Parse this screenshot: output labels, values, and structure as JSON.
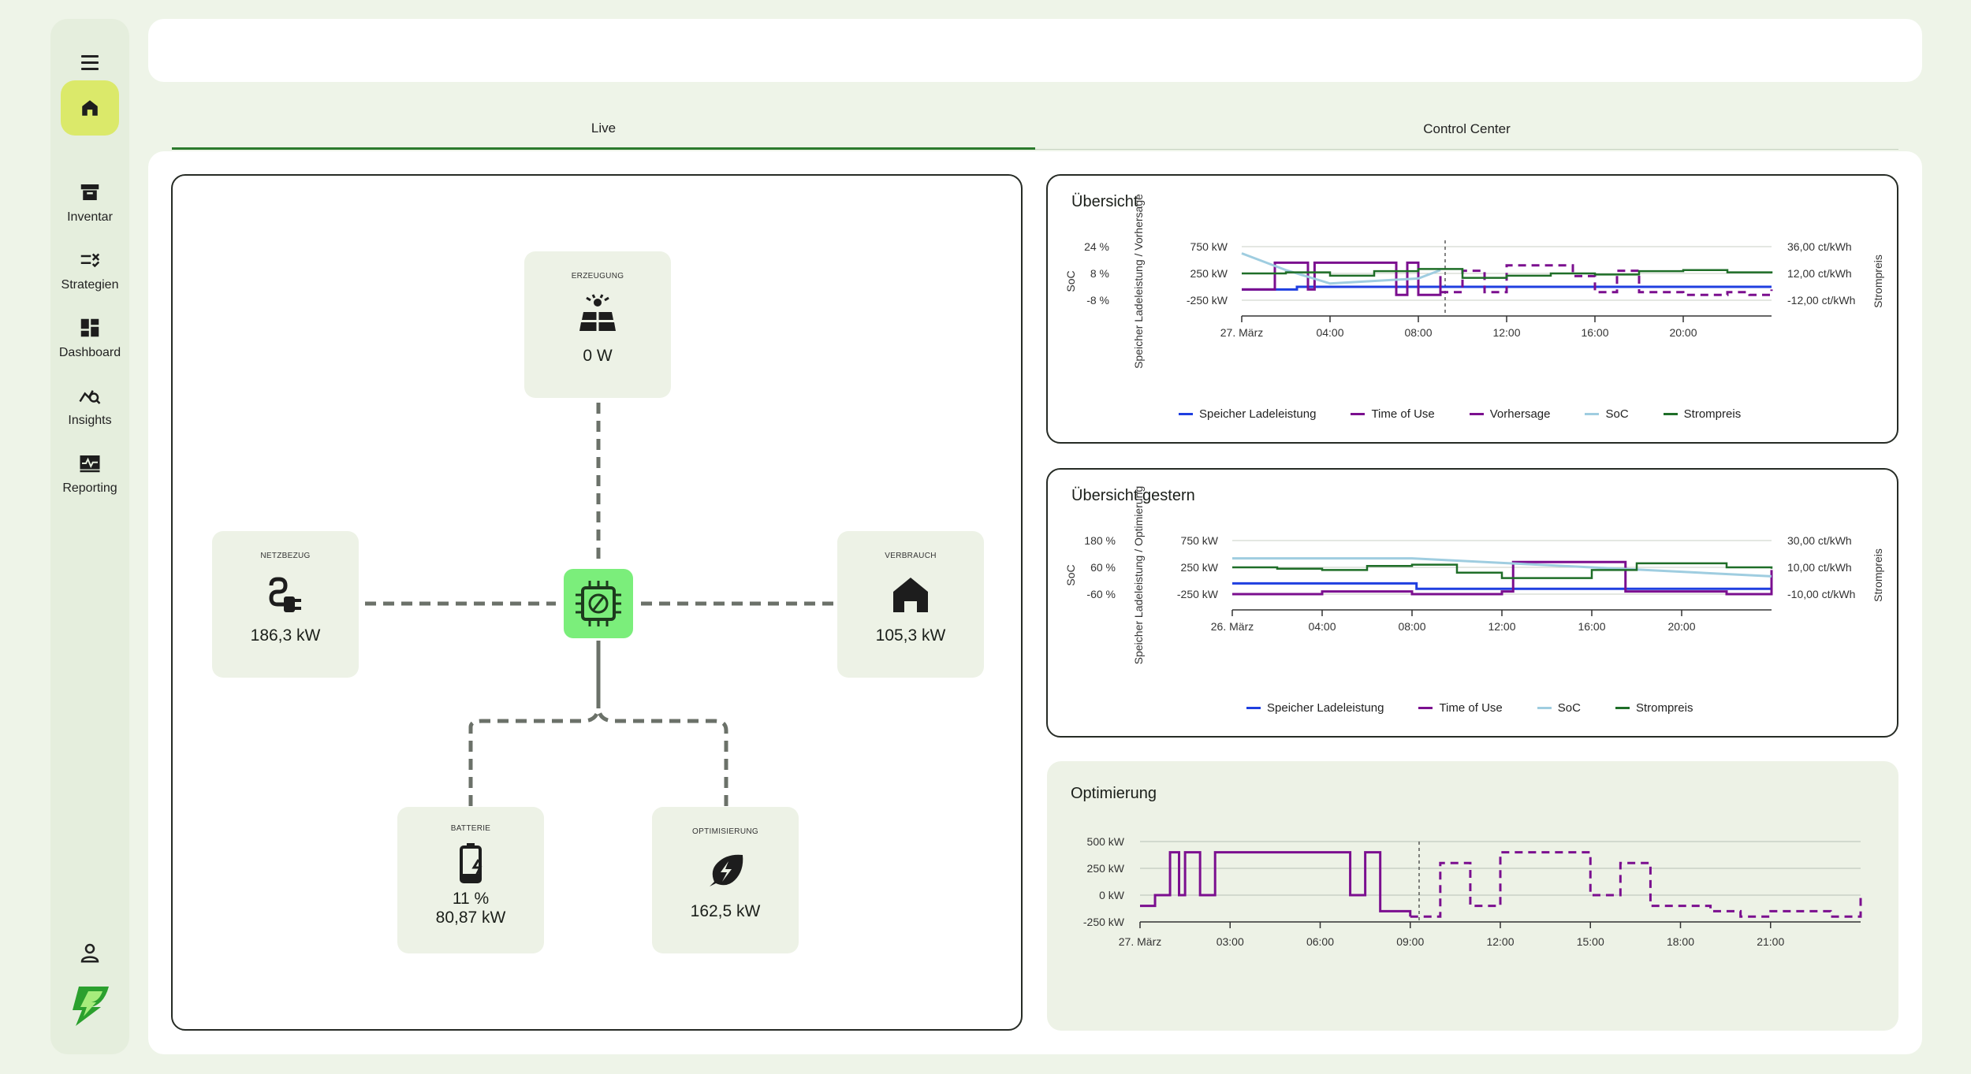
{
  "sidebar": {
    "items": [
      {
        "label": "Inventar",
        "icon": "archive-icon"
      },
      {
        "label": "Strategien",
        "icon": "strategy-icon"
      },
      {
        "label": "Dashboard",
        "icon": "dashboard-icon"
      },
      {
        "label": "Insights",
        "icon": "insights-icon"
      },
      {
        "label": "Reporting",
        "icon": "reporting-icon"
      }
    ]
  },
  "tabs": [
    {
      "label": "Live",
      "active": true
    },
    {
      "label": "Control Center",
      "active": false
    }
  ],
  "flow": {
    "erzeugung": {
      "title": "ERZEUGUNG",
      "value": "0 W"
    },
    "netzbezug": {
      "title": "NETZBEZUG",
      "value": "186,3 kW"
    },
    "verbrauch": {
      "title": "VERBRAUCH",
      "value": "105,3 kW"
    },
    "batterie": {
      "title": "BATTERIE",
      "soc": "11 %",
      "value": "80,87 kW"
    },
    "optimisierung": {
      "title": "OPTIMISIERUNG",
      "value": "162,5 kW"
    }
  },
  "colors": {
    "accent": "#dbe96a",
    "hub": "#7bee7b",
    "speicher": "#1f3fe0",
    "time_of_use": "#7b0f8f",
    "soc": "#9fcde0",
    "strompreis": "#1f6e28"
  },
  "chart_data": [
    {
      "type": "line",
      "title": "Übersicht",
      "y_left_soc_label": "SoC",
      "y_left_soc_ticks": [
        "24 %",
        "8 %",
        "-8 %"
      ],
      "y_left_power_label": "Speicher Ladeleistung / Vorhersage",
      "y_left_power_ticks": [
        "750 kW",
        "250 kW",
        "-250 kW"
      ],
      "y_right_label": "Strompreis",
      "y_right_ticks": [
        "36,00 ct/kWh",
        "12,00 ct/kWh",
        "-12,00 ct/kWh"
      ],
      "x_ticks": [
        "27. März",
        "04:00",
        "08:00",
        "12:00",
        "16:00",
        "20:00"
      ],
      "legend": [
        "Speicher Ladeleistung",
        "Time of Use",
        "Vorhersage",
        "SoC",
        "Strompreis"
      ],
      "series": [
        {
          "name": "Speicher Ladeleistung",
          "x": [
            0,
            2,
            2.5,
            12,
            24
          ],
          "y": [
            -50,
            -50,
            0,
            0,
            0
          ]
        },
        {
          "name": "Time of Use",
          "x": [
            0,
            1,
            1.5,
            2.5,
            3,
            3.3,
            3.6,
            6.5,
            7,
            7.5,
            8,
            9
          ],
          "y": [
            -50,
            -50,
            450,
            450,
            -50,
            450,
            450,
            450,
            -150,
            450,
            -150,
            200
          ]
        },
        {
          "name": "Vorhersage",
          "x": [
            9,
            10,
            11,
            12,
            13,
            14,
            15,
            16,
            17,
            18,
            19,
            20,
            21,
            22,
            23,
            24
          ],
          "y": [
            -100,
            300,
            -100,
            400,
            400,
            400,
            200,
            -100,
            300,
            -100,
            -100,
            -150,
            -150,
            -100,
            -150,
            -50
          ]
        },
        {
          "name": "SoC",
          "x": [
            0,
            2,
            4,
            8,
            9
          ],
          "y": [
            20,
            10,
            2,
            5,
            10
          ]
        },
        {
          "name": "Strompreis",
          "x": [
            0,
            2,
            4,
            6,
            8,
            10,
            12,
            14,
            16,
            18,
            20,
            22,
            24
          ],
          "y": [
            12,
            13,
            10,
            14,
            16,
            8,
            10,
            12,
            11,
            14,
            15,
            13,
            12
          ]
        }
      ]
    },
    {
      "type": "line",
      "title": "Übersicht gestern",
      "y_left_soc_label": "SoC",
      "y_left_soc_ticks": [
        "180 %",
        "60 %",
        "-60 %"
      ],
      "y_left_power_label": "Speicher Ladeleistung / Optimierung",
      "y_left_power_ticks": [
        "750 kW",
        "250 kW",
        "-250 kW"
      ],
      "y_right_label": "Strompreis",
      "y_right_ticks": [
        "30,00 ct/kWh",
        "10,00 ct/kWh",
        "-10,00 ct/kWh"
      ],
      "x_ticks": [
        "26. März",
        "04:00",
        "08:00",
        "12:00",
        "16:00",
        "20:00"
      ],
      "legend": [
        "Speicher Ladeleistung",
        "Time of Use",
        "SoC",
        "Strompreis"
      ],
      "series": [
        {
          "name": "Speicher Ladeleistung",
          "x": [
            0,
            8,
            8.2,
            24
          ],
          "y": [
            -50,
            -50,
            -150,
            -150
          ]
        },
        {
          "name": "Time of Use",
          "x": [
            0,
            4,
            8,
            12,
            12.5,
            13,
            17,
            17.5,
            22,
            24
          ],
          "y": [
            -250,
            -200,
            -250,
            -200,
            350,
            350,
            350,
            -200,
            -250,
            200
          ]
        },
        {
          "name": "SoC",
          "x": [
            0,
            8,
            12,
            16,
            20,
            24
          ],
          "y": [
            100,
            100,
            80,
            60,
            40,
            20
          ]
        },
        {
          "name": "Strompreis",
          "x": [
            0,
            2,
            4,
            6,
            8,
            10,
            12,
            14,
            16,
            18,
            20,
            22,
            24
          ],
          "y": [
            10,
            9,
            8,
            11,
            12,
            6,
            2,
            2,
            8,
            13,
            13,
            10,
            9
          ]
        }
      ]
    },
    {
      "type": "line",
      "title": "Optimierung",
      "y_ticks": [
        "500 kW",
        "250 kW",
        "0 kW",
        "-250 kW"
      ],
      "x_ticks": [
        "27. März",
        "03:00",
        "06:00",
        "09:00",
        "12:00",
        "15:00",
        "18:00",
        "21:00"
      ],
      "series": [
        {
          "name": "Time of Use",
          "x": [
            0,
            0.5,
            1,
            1.3,
            1.5,
            2,
            2.5,
            6.5,
            7,
            7.5,
            8,
            9
          ],
          "y": [
            -100,
            0,
            400,
            0,
            400,
            0,
            400,
            400,
            0,
            400,
            -150,
            -200
          ]
        },
        {
          "name": "Vorhersage",
          "x": [
            9,
            10,
            11,
            12,
            13,
            14,
            15,
            16,
            17,
            18,
            19,
            20,
            21,
            22,
            23,
            24
          ],
          "y": [
            -200,
            300,
            -100,
            400,
            400,
            400,
            0,
            300,
            -100,
            -100,
            -150,
            -200,
            -150,
            -150,
            -200,
            0
          ]
        }
      ]
    }
  ]
}
